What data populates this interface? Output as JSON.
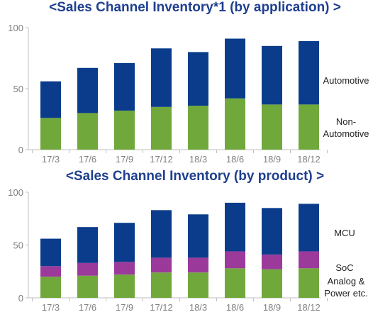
{
  "colors": {
    "automotive": "#0b3c8c",
    "non_automotive": "#70a83c",
    "mcu": "#0b3c8c",
    "soc": "#9b3a9b",
    "analog": "#70a83c",
    "axis": "#bfbfbf",
    "title": "#1f3f8f"
  },
  "chart_data": [
    {
      "type": "bar",
      "stacked": true,
      "title": "<Sales Channel Inventory*1 (by application) >",
      "categories": [
        "17/3",
        "17/6",
        "17/9",
        "17/12",
        "18/3",
        "18/6",
        "18/9",
        "18/12"
      ],
      "series": [
        {
          "name": "Non-Automotive",
          "values": [
            26,
            30,
            32,
            35,
            36,
            42,
            37,
            37
          ]
        },
        {
          "name": "Automotive",
          "values": [
            30,
            37,
            39,
            48,
            44,
            49,
            48,
            52
          ]
        }
      ],
      "yticks": [
        "0",
        "50",
        "100"
      ],
      "ylim": [
        0,
        100
      ],
      "grid": false,
      "legend": "right, inline labels"
    },
    {
      "type": "bar",
      "stacked": true,
      "title": "<Sales Channel Inventory (by product) >",
      "categories": [
        "17/3",
        "17/6",
        "17/9",
        "17/12",
        "18/3",
        "18/6",
        "18/9",
        "18/12"
      ],
      "series": [
        {
          "name": "Analog & Power etc.",
          "values": [
            20,
            21,
            22,
            24,
            24,
            28,
            27,
            28
          ]
        },
        {
          "name": "SoC",
          "values": [
            10,
            12,
            12,
            14,
            14,
            16,
            14,
            16
          ]
        },
        {
          "name": "MCU",
          "values": [
            26,
            34,
            37,
            45,
            41,
            46,
            44,
            45
          ]
        }
      ],
      "yticks": [
        "0",
        "50",
        "100"
      ],
      "ylim": [
        0,
        100
      ],
      "grid": false,
      "legend": "right, inline labels"
    }
  ]
}
